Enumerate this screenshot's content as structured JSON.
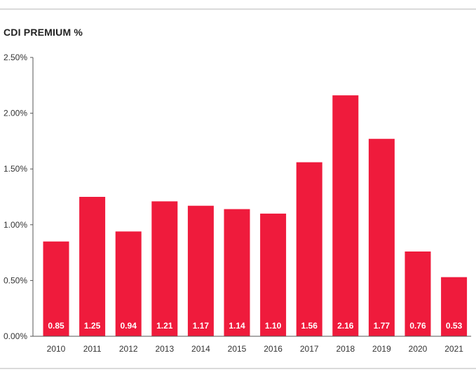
{
  "colors": {
    "bar": "#ef1b3c",
    "rule": "#b5b5b5",
    "axis": "#555555",
    "text": "#222222"
  },
  "chart_data": {
    "type": "bar",
    "title": "CDI PREMIUM %",
    "xlabel": "",
    "ylabel": "",
    "ylim": [
      0,
      2.5
    ],
    "yticks": [
      0,
      0.5,
      1.0,
      1.5,
      2.0,
      2.5
    ],
    "ytick_labels": [
      "0.00%",
      "0.50%",
      "1.00%",
      "1.50%",
      "2.00%",
      "2.50%"
    ],
    "categories": [
      "2010",
      "2011",
      "2012",
      "2013",
      "2014",
      "2015",
      "2016",
      "2017",
      "2018",
      "2019",
      "2020",
      "2021"
    ],
    "values": [
      0.85,
      1.25,
      0.94,
      1.21,
      1.17,
      1.14,
      1.1,
      1.56,
      2.16,
      1.77,
      0.76,
      0.53
    ],
    "value_labels": [
      "0.85",
      "1.25",
      "0.94",
      "1.21",
      "1.17",
      "1.14",
      "1.10",
      "1.56",
      "2.16",
      "1.77",
      "0.76",
      "0.53"
    ],
    "grid": false,
    "legend": "none"
  }
}
